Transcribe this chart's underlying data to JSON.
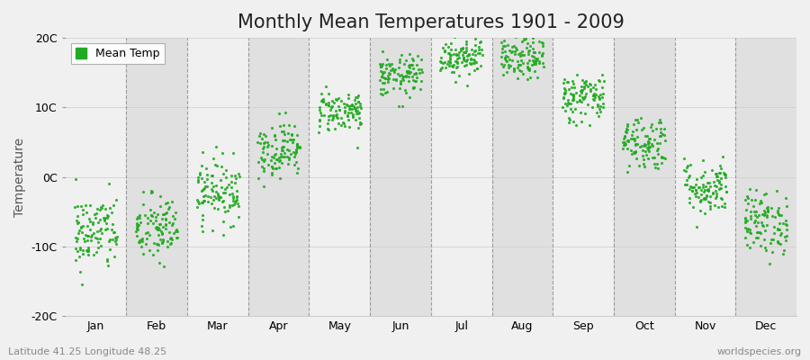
{
  "title": "Monthly Mean Temperatures 1901 - 2009",
  "ylabel": "Temperature",
  "background_color": "#f0f0f0",
  "plot_bg_color_light": "#f0f0f0",
  "plot_bg_color_dark": "#e0e0e0",
  "dot_color": "#22aa22",
  "dot_size": 5,
  "ylim": [
    -20,
    20
  ],
  "yticks": [
    -20,
    -10,
    0,
    10,
    20
  ],
  "ytick_labels": [
    "-20C",
    "-10C",
    "0C",
    "10C",
    "20C"
  ],
  "months": [
    "Jan",
    "Feb",
    "Mar",
    "Apr",
    "May",
    "Jun",
    "Jul",
    "Aug",
    "Sep",
    "Oct",
    "Nov",
    "Dec"
  ],
  "month_means": [
    -8.0,
    -7.5,
    -2.0,
    4.0,
    9.5,
    14.5,
    17.5,
    17.0,
    11.5,
    5.0,
    -1.5,
    -6.5
  ],
  "month_stds": [
    2.8,
    2.5,
    2.3,
    2.0,
    1.5,
    1.5,
    1.5,
    1.5,
    1.8,
    2.0,
    2.0,
    2.3
  ],
  "n_years": 109,
  "subtitle_left": "Latitude 41.25 Longitude 48.25",
  "subtitle_right": "worldspecies.org",
  "legend_label": "Mean Temp",
  "title_fontsize": 15,
  "axis_fontsize": 10,
  "tick_fontsize": 9,
  "subtitle_fontsize": 8
}
